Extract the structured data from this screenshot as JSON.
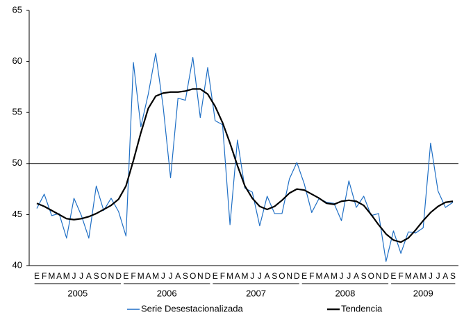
{
  "chart_data": {
    "type": "line",
    "categories": [
      "E",
      "F",
      "M",
      "A",
      "M",
      "J",
      "J",
      "A",
      "S",
      "O",
      "N",
      "D",
      "E",
      "F",
      "M",
      "A",
      "M",
      "J",
      "J",
      "A",
      "S",
      "O",
      "N",
      "D",
      "E",
      "F",
      "M",
      "A",
      "M",
      "J",
      "J",
      "A",
      "S",
      "O",
      "N",
      "D",
      "E",
      "F",
      "M",
      "A",
      "M",
      "J",
      "J",
      "A",
      "S",
      "O",
      "N",
      "D",
      "E",
      "F",
      "M",
      "A",
      "M",
      "J",
      "J",
      "A",
      "S"
    ],
    "year_groups": [
      "2005",
      "2006",
      "2007",
      "2008",
      "2009"
    ],
    "series": [
      {
        "name": "Serie Desestacionalizada",
        "color": "#1f6fc5",
        "values": [
          45.6,
          47.0,
          44.9,
          45.1,
          42.7,
          46.6,
          44.9,
          42.7,
          47.8,
          45.4,
          46.6,
          45.3,
          42.9,
          59.9,
          53.6,
          56.8,
          60.8,
          55.6,
          48.6,
          56.4,
          56.2,
          60.4,
          54.5,
          59.4,
          54.2,
          53.8,
          44.0,
          52.3,
          47.6,
          47.2,
          43.9,
          46.8,
          45.1,
          45.1,
          48.5,
          50.1,
          48.0,
          45.2,
          46.6,
          46.2,
          46.1,
          44.4,
          48.3,
          45.7,
          46.8,
          44.9,
          45.1,
          40.4,
          43.4,
          41.2,
          43.3,
          43.2,
          43.7,
          52.0,
          47.3,
          45.7,
          46.2
        ]
      },
      {
        "name": "Tendencia",
        "color": "#000000",
        "values": [
          46.1,
          45.8,
          45.4,
          45.0,
          44.6,
          44.5,
          44.6,
          44.8,
          45.1,
          45.5,
          45.9,
          46.5,
          47.8,
          50.3,
          53.0,
          55.4,
          56.6,
          56.9,
          57.0,
          57.0,
          57.1,
          57.3,
          57.3,
          56.8,
          55.6,
          54.0,
          52.0,
          49.8,
          47.8,
          46.6,
          45.8,
          45.5,
          45.8,
          46.4,
          47.1,
          47.5,
          47.4,
          47.0,
          46.6,
          46.1,
          46.0,
          46.3,
          46.4,
          46.3,
          45.9,
          45.0,
          44.0,
          43.1,
          42.5,
          42.3,
          42.7,
          43.5,
          44.4,
          45.2,
          45.8,
          46.2,
          46.3
        ]
      }
    ],
    "ylim": [
      40,
      65
    ],
    "yticks": [
      40,
      45,
      50,
      55,
      60,
      65
    ],
    "reference_line": 50,
    "grid": false
  }
}
